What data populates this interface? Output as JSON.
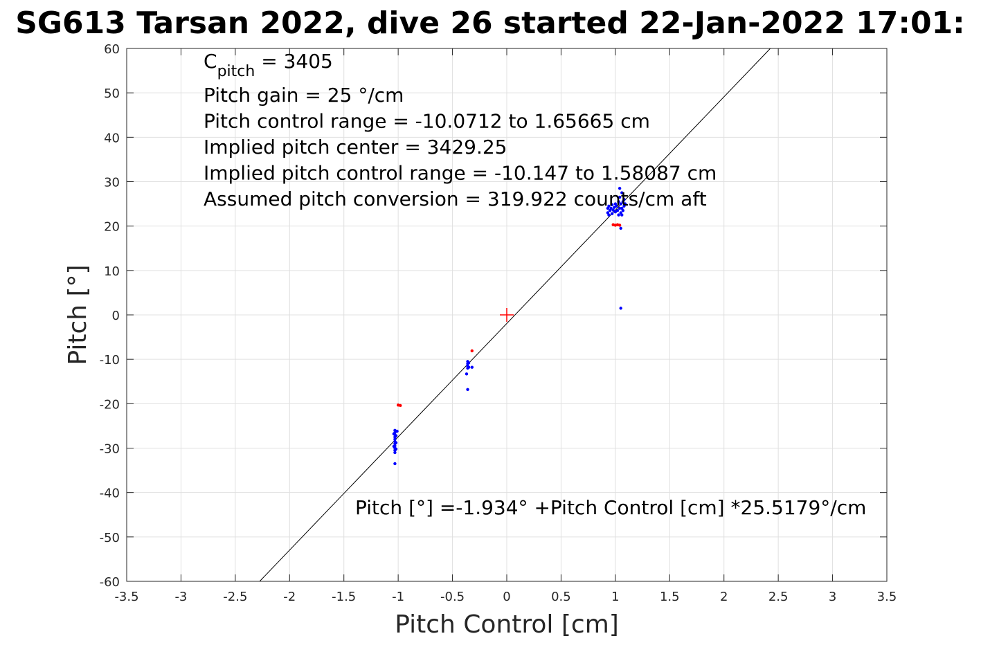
{
  "chart_data": {
    "type": "scatter",
    "title": "SG613 Tarsan 2022, dive 26 started 22-Jan-2022 17:01:",
    "xlabel": "Pitch Control [cm]",
    "ylabel": "Pitch [°]",
    "xlim": [
      -3.5,
      3.5
    ],
    "ylim": [
      -60,
      60
    ],
    "xticks": [
      -3.5,
      -3,
      -2.5,
      -2,
      -1.5,
      -1,
      -0.5,
      0,
      0.5,
      1,
      1.5,
      2,
      2.5,
      3,
      3.5
    ],
    "xtick_labels": [
      "-3.5",
      "-3",
      "-2.5",
      "-2",
      "-1.5",
      "-1",
      "-0.5",
      "0",
      "0.5",
      "1",
      "1.5",
      "2",
      "2.5",
      "3",
      "3.5"
    ],
    "yticks": [
      -60,
      -50,
      -40,
      -30,
      -20,
      -10,
      0,
      10,
      20,
      30,
      40,
      50,
      60
    ],
    "ytick_labels": [
      "-60",
      "-50",
      "-40",
      "-30",
      "-20",
      "-10",
      "0",
      "10",
      "20",
      "30",
      "40",
      "50",
      "60"
    ],
    "grid": true,
    "fit_line": {
      "intercept": -1.934,
      "slope": 25.5179
    },
    "center_marker": {
      "x": 0,
      "y": 0,
      "color": "#ff0000"
    },
    "series": [
      {
        "color": "#0000ff",
        "points": [
          [
            -1.03,
            -26.0
          ],
          [
            -1.03,
            -26.5
          ],
          [
            -1.03,
            -27.0
          ],
          [
            -1.03,
            -27.5
          ],
          [
            -1.03,
            -28.0
          ],
          [
            -1.03,
            -28.5
          ],
          [
            -1.03,
            -29.0
          ],
          [
            -1.03,
            -29.5
          ],
          [
            -1.03,
            -30.0
          ],
          [
            -1.03,
            -30.5
          ],
          [
            -1.03,
            -31.0
          ],
          [
            -1.02,
            -27.2
          ],
          [
            -1.02,
            -28.8
          ],
          [
            -1.02,
            -30.2
          ],
          [
            -1.04,
            -26.8
          ],
          [
            -1.04,
            -29.6
          ],
          [
            -1.01,
            -26.2
          ],
          [
            -1.03,
            -33.5
          ],
          [
            -0.36,
            -10.5
          ],
          [
            -0.36,
            -11.0
          ],
          [
            -0.36,
            -11.5
          ],
          [
            -0.36,
            -12.0
          ],
          [
            -0.35,
            -10.8
          ],
          [
            -0.35,
            -11.8
          ],
          [
            -0.37,
            -13.3
          ],
          [
            -0.32,
            -11.8
          ],
          [
            -0.36,
            -16.8
          ],
          [
            0.93,
            23.0
          ],
          [
            0.93,
            24.0
          ],
          [
            0.94,
            22.5
          ],
          [
            0.94,
            24.5
          ],
          [
            0.95,
            23.5
          ],
          [
            0.96,
            24.0
          ],
          [
            0.97,
            22.8
          ],
          [
            0.97,
            24.8
          ],
          [
            0.98,
            23.6
          ],
          [
            0.99,
            24.2
          ],
          [
            1.0,
            23.2
          ],
          [
            1.0,
            25.0
          ],
          [
            1.01,
            24.5
          ],
          [
            1.02,
            23.5
          ],
          [
            1.03,
            22.5
          ],
          [
            1.03,
            25.5
          ],
          [
            1.04,
            24.0
          ],
          [
            1.04,
            26.5
          ],
          [
            1.05,
            23.0
          ],
          [
            1.05,
            25.0
          ],
          [
            1.06,
            24.0
          ],
          [
            1.06,
            27.5
          ],
          [
            1.06,
            22.5
          ],
          [
            1.07,
            25.5
          ],
          [
            1.07,
            23.5
          ],
          [
            1.08,
            24.5
          ],
          [
            1.08,
            26.0
          ],
          [
            1.09,
            25.0
          ],
          [
            1.04,
            28.5
          ],
          [
            1.05,
            19.5
          ],
          [
            1.05,
            1.5
          ]
        ]
      },
      {
        "color": "#ff0000",
        "points": [
          [
            -1.0,
            -20.3
          ],
          [
            -0.98,
            -20.4
          ],
          [
            -0.32,
            -8.1
          ],
          [
            0.98,
            20.3
          ],
          [
            1.0,
            20.2
          ],
          [
            1.02,
            20.3
          ],
          [
            1.04,
            20.2
          ]
        ]
      }
    ]
  },
  "annotations": {
    "c_pitch_main": "C",
    "c_pitch_sub": "pitch",
    "c_pitch_value": " = 3405",
    "lines": [
      "Pitch gain = 25 °/cm",
      "Pitch control range = -10.0712 to 1.65665 cm",
      "Implied pitch center = 3429.25",
      "Implied pitch control range = -10.147 to 1.58087 cm",
      "Assumed pitch conversion = 319.922 counts/cm aft"
    ],
    "fit_equation": "Pitch [°] =-1.934° +Pitch Control [cm] *25.5179°/cm"
  }
}
